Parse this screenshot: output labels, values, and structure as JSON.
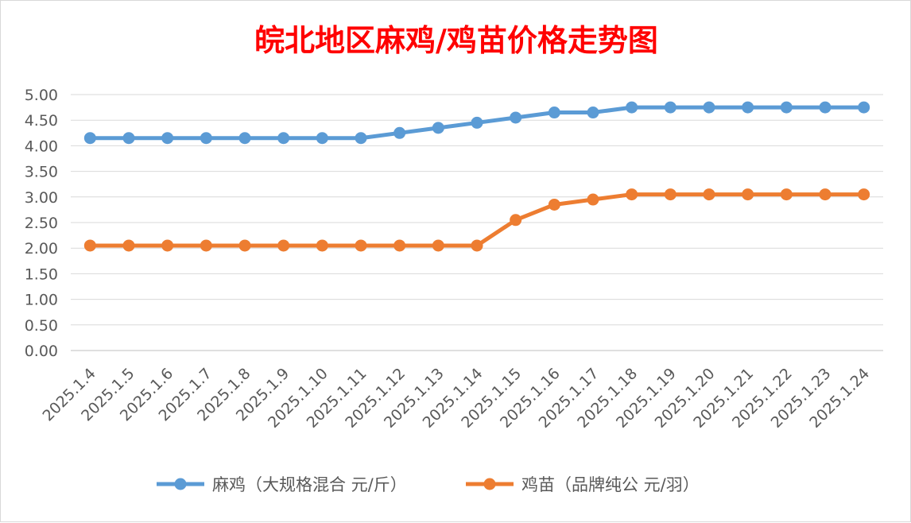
{
  "chart_data": {
    "type": "line",
    "title": "皖北地区麻鸡/鸡苗价格走势图",
    "categories": [
      "2025.1.4",
      "2025.1.5",
      "2025.1.6",
      "2025.1.7",
      "2025.1.8",
      "2025.1.9",
      "2025.1.10",
      "2025.1.11",
      "2025.1.12",
      "2025.1.13",
      "2025.1.14",
      "2025.1.15",
      "2025.1.16",
      "2025.1.17",
      "2025.1.18",
      "2025.1.19",
      "2025.1.20",
      "2025.1.21",
      "2025.1.22",
      "2025.1.23",
      "2025.1.24"
    ],
    "series": [
      {
        "name": "麻鸡（大规格混合 元/斤）",
        "color": "#5b9bd5",
        "values": [
          4.15,
          4.15,
          4.15,
          4.15,
          4.15,
          4.15,
          4.15,
          4.15,
          4.25,
          4.35,
          4.45,
          4.55,
          4.65,
          4.65,
          4.75,
          4.75,
          4.75,
          4.75,
          4.75,
          4.75,
          4.75
        ]
      },
      {
        "name": "鸡苗（品牌纯公 元/羽）",
        "color": "#ed7d31",
        "values": [
          2.05,
          2.05,
          2.05,
          2.05,
          2.05,
          2.05,
          2.05,
          2.05,
          2.05,
          2.05,
          2.05,
          2.55,
          2.85,
          2.95,
          3.05,
          3.05,
          3.05,
          3.05,
          3.05,
          3.05,
          3.05
        ]
      }
    ],
    "yticks": [
      "0.00",
      "0.50",
      "1.00",
      "1.50",
      "2.00",
      "2.50",
      "3.00",
      "3.50",
      "4.00",
      "4.50",
      "5.00"
    ],
    "ylim": [
      0,
      5
    ],
    "grid": true,
    "legend": "bottom"
  }
}
